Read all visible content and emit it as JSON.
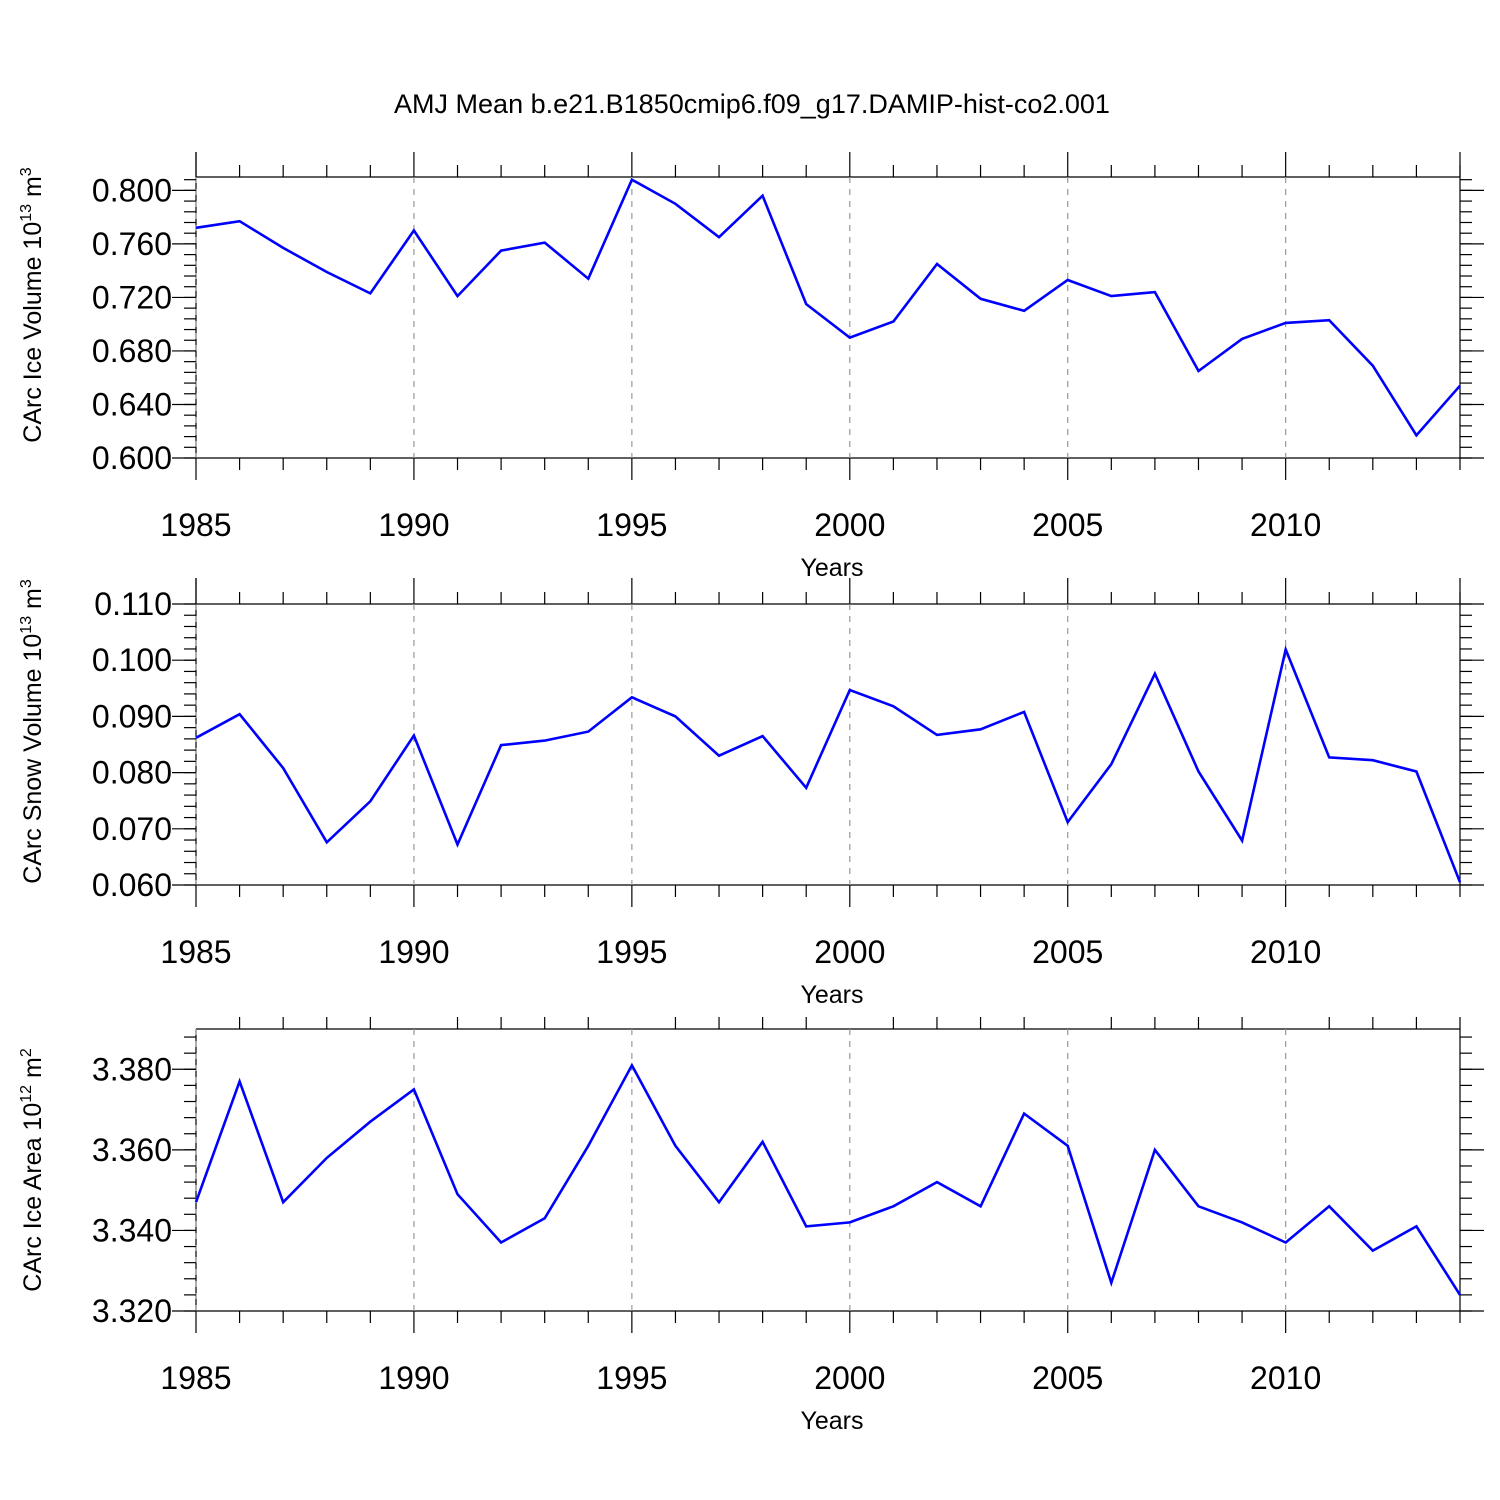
{
  "figure_title": "AMJ Mean b.e21.B1850cmip6.f09_g17.DAMIP-hist-co2.001",
  "colors": {
    "series": "#0000ff",
    "grid": "#999999",
    "axis": "#000000"
  },
  "chart_data": [
    {
      "type": "line",
      "ylabel": "CArc Ice Volume 10",
      "ylabel_sup": "13",
      "ylabel_unit": " m",
      "ylabel_unit_sup": "3",
      "xlabel": "Years",
      "xlim": [
        1985,
        2014
      ],
      "ylim": [
        0.6,
        0.81
      ],
      "xticks": [
        1985,
        1990,
        1995,
        2000,
        2005,
        2010
      ],
      "yticks": [
        "0.600",
        "0.640",
        "0.680",
        "0.720",
        "0.760",
        "0.800"
      ],
      "grid_x": true,
      "series": [
        {
          "x": [
            1985,
            1986,
            1987,
            1988,
            1989,
            1990,
            1991,
            1992,
            1993,
            1994,
            1995,
            1996,
            1997,
            1998,
            1999,
            2000,
            2001,
            2002,
            2003,
            2004,
            2005,
            2006,
            2007,
            2008,
            2009,
            2010,
            2011,
            2012,
            2013,
            2014
          ],
          "values": [
            0.772,
            0.777,
            0.757,
            0.739,
            0.723,
            0.77,
            0.721,
            0.755,
            0.761,
            0.734,
            0.808,
            0.79,
            0.765,
            0.796,
            0.715,
            0.69,
            0.702,
            0.745,
            0.719,
            0.71,
            0.733,
            0.721,
            0.724,
            0.665,
            0.689,
            0.701,
            0.703,
            0.669,
            0.617,
            0.654
          ]
        }
      ]
    },
    {
      "type": "line",
      "ylabel": "CArc Snow Volume 10",
      "ylabel_sup": "13",
      "ylabel_unit": " m",
      "ylabel_unit_sup": "3",
      "xlabel": "Years",
      "xlim": [
        1985,
        2014
      ],
      "ylim": [
        0.06,
        0.11
      ],
      "xticks": [
        1985,
        1990,
        1995,
        2000,
        2005,
        2010
      ],
      "yticks": [
        "0.060",
        "0.070",
        "0.080",
        "0.090",
        "0.100",
        "0.110"
      ],
      "grid_x": true,
      "series": [
        {
          "x": [
            1985,
            1986,
            1987,
            1988,
            1989,
            1990,
            1991,
            1992,
            1993,
            1994,
            1995,
            1996,
            1997,
            1998,
            1999,
            2000,
            2001,
            2002,
            2003,
            2004,
            2005,
            2006,
            2007,
            2008,
            2009,
            2010,
            2011,
            2012,
            2013,
            2014
          ],
          "values": [
            0.0862,
            0.0904,
            0.0808,
            0.0676,
            0.0749,
            0.0866,
            0.0672,
            0.0849,
            0.0857,
            0.0873,
            0.0934,
            0.09,
            0.083,
            0.0865,
            0.0773,
            0.0947,
            0.0918,
            0.0867,
            0.0877,
            0.0908,
            0.0712,
            0.0815,
            0.0976,
            0.0802,
            0.0679,
            0.1019,
            0.0827,
            0.0822,
            0.0802,
            0.0605
          ]
        }
      ]
    },
    {
      "type": "line",
      "ylabel": "CArc Ice Area 10",
      "ylabel_sup": "12",
      "ylabel_unit": " m",
      "ylabel_unit_sup": "2",
      "xlabel": "Years",
      "xlim": [
        1985,
        2014
      ],
      "ylim": [
        3.32,
        3.39
      ],
      "xticks": [
        1985,
        1990,
        1995,
        2000,
        2005,
        2010
      ],
      "yticks": [
        "3.320",
        "3.340",
        "3.360",
        "3.380"
      ],
      "grid_x": true,
      "series": [
        {
          "x": [
            1985,
            1986,
            1987,
            1988,
            1989,
            1990,
            1991,
            1992,
            1993,
            1994,
            1995,
            1996,
            1997,
            1998,
            1999,
            2000,
            2001,
            2002,
            2003,
            2004,
            2005,
            2006,
            2007,
            2008,
            2009,
            2010,
            2011,
            2012,
            2013,
            2014
          ],
          "values": [
            3.347,
            3.377,
            3.347,
            3.358,
            3.367,
            3.375,
            3.349,
            3.337,
            3.343,
            3.361,
            3.381,
            3.361,
            3.347,
            3.362,
            3.341,
            3.342,
            3.346,
            3.352,
            3.346,
            3.369,
            3.361,
            3.327,
            3.36,
            3.346,
            3.342,
            3.337,
            3.346,
            3.335,
            3.341,
            3.324
          ]
        }
      ]
    }
  ]
}
